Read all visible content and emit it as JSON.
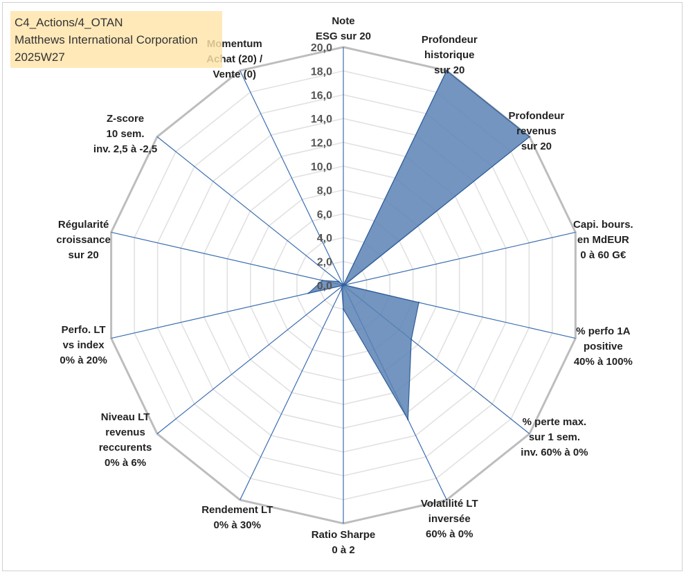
{
  "chart_data": {
    "type": "radar",
    "title_lines": [
      "C4_Actions/4_OTAN",
      "Matthews International Corporation",
      "2025W27"
    ],
    "scale": {
      "min": 0,
      "max": 20,
      "step": 2,
      "tick_labels": [
        "0,0",
        "2,0",
        "4,0",
        "6,0",
        "8,0",
        "10,0",
        "12,0",
        "14,0",
        "16,0",
        "18,0",
        "20,0"
      ]
    },
    "axes": [
      {
        "label": [
          "Note",
          "ESG sur 20"
        ],
        "value": 0
      },
      {
        "label": [
          "Profondeur",
          "historique",
          "sur 20"
        ],
        "value": 20
      },
      {
        "label": [
          "Profondeur",
          "revenus",
          "sur 20"
        ],
        "value": 20
      },
      {
        "label": [
          "Capi. bours.",
          "en MdEUR",
          "0 à 60 G€"
        ],
        "value": 0.1
      },
      {
        "label": [
          "% perfo 1A",
          "positive",
          "40% à 100%"
        ],
        "value": 6.5
      },
      {
        "label": [
          "% perte max.",
          "sur 1 sem.",
          "inv. 60% à 0%"
        ],
        "value": 7.3
      },
      {
        "label": [
          "Volatilité LT",
          "inversée",
          "60% à 0%"
        ],
        "value": 12.5
      },
      {
        "label": [
          "Ratio Sharpe",
          "0 à 2"
        ],
        "value": 2
      },
      {
        "label": [
          "Rendement LT",
          "0% à 30%"
        ],
        "value": 0.3
      },
      {
        "label": [
          "Niveau LT",
          "revenus",
          "reccurents",
          "0% à 6%"
        ],
        "value": 0
      },
      {
        "label": [
          "Perfo. LT",
          "vs index",
          "0% à 20%"
        ],
        "value": 3
      },
      {
        "label": [
          "Régularité",
          "croissance",
          "sur 20"
        ],
        "value": 1.8
      },
      {
        "label": [
          "Z-score",
          "10 sem.",
          "inv. 2,5 à -2,5"
        ],
        "value": 0.5
      },
      {
        "label": [
          "Momentum",
          "Achat (20) /",
          "Vente (0)"
        ],
        "value": 0
      }
    ],
    "colors": {
      "fill": "#5b82b4",
      "stroke": "#2f5d99",
      "grid_outer": "#bdbdbd",
      "grid_inner": "#e1e1e1",
      "spoke": "#3a6db0"
    }
  }
}
